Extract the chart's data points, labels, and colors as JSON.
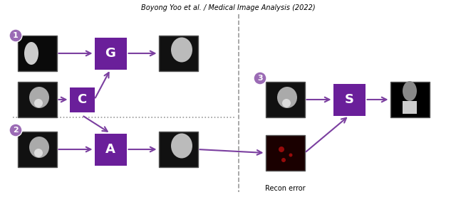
{
  "title": "Boyong Yoo et al. / Medical Image Analysis (2022)",
  "title_fontsize": 7,
  "bg_color": "#ffffff",
  "purple_box_color": "#6A1F9A",
  "purple_light": "#9B6BB5",
  "arrow_color": "#7B3FA0",
  "dashed_line_color": "#888888",
  "circle_color": "#9B6BB5",
  "circle_text_color": "#ffffff",
  "box_labels": [
    "G",
    "C",
    "A",
    "S"
  ],
  "step_labels": [
    "1",
    "2",
    "3"
  ],
  "recon_error_label": "Recon error",
  "text_fontsize": 9,
  "label_fontsize": 7
}
